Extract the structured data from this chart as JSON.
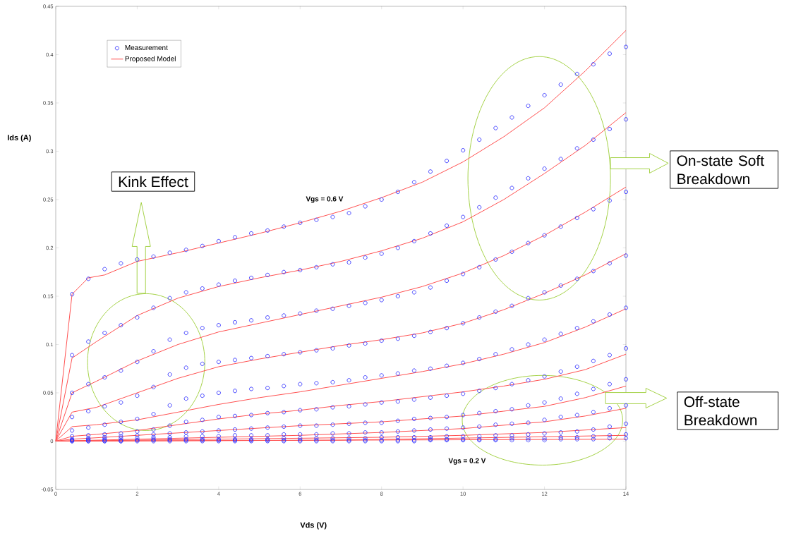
{
  "chart_data": {
    "type": "line",
    "xlabel": "Vds (V)",
    "ylabel": "Ids (A)",
    "xlim": [
      0,
      14
    ],
    "ylim": [
      -0.05,
      0.45
    ],
    "xticks": [
      0,
      2,
      4,
      6,
      8,
      10,
      12,
      14
    ],
    "yticks": [
      -0.05,
      0,
      0.05,
      0.1,
      0.15,
      0.2,
      0.25,
      0.3,
      0.35,
      0.4,
      0.45
    ],
    "legend": "top left",
    "marker": "none",
    "grid": false,
    "x": [
      0.4,
      0.8,
      1.2,
      1.6,
      2,
      2.4,
      2.8,
      3.2,
      3.6,
      4,
      4.4,
      4.8,
      5.2,
      5.6,
      6,
      6.4,
      6.8,
      7.2,
      7.6,
      8,
      8.4,
      8.8,
      9.2,
      9.6,
      10,
      10.4,
      10.8,
      11.2,
      11.6,
      12,
      12.4,
      12.8,
      13.2,
      13.6,
      14
    ],
    "series": [
      {
        "name": "Measurement",
        "type": "scatter",
        "marker": "circle",
        "color": "#3333ff",
        "values": [
          0.152,
          0.168,
          0.178,
          0.184,
          0.188,
          0.191,
          0.195,
          0.198,
          0.202,
          0.207,
          0.211,
          0.215,
          0.218,
          0.222,
          0.226,
          0.229,
          0.232,
          0.236,
          0.243,
          0.25,
          0.258,
          0.268,
          0.279,
          0.29,
          0.301,
          0.312,
          0.324,
          0.335,
          0.347,
          0.358,
          0.369,
          0.38,
          0.39,
          0.401,
          0.408
        ]
      },
      {
        "name": "Proposed Model",
        "color": "#ff5050",
        "x": [
          0,
          0.4,
          0.8,
          1.2,
          2,
          3,
          4,
          5,
          6,
          7,
          8,
          9,
          10,
          11,
          12,
          13,
          14
        ],
        "values": [
          0,
          0.152,
          0.169,
          0.172,
          0.186,
          0.195,
          0.205,
          0.215,
          0.226,
          0.238,
          0.252,
          0.268,
          0.289,
          0.315,
          0.345,
          0.383,
          0.425
        ]
      },
      {
        "color": "#ff5050",
        "x": [
          0,
          0.4,
          1,
          2,
          3,
          4,
          5,
          6,
          7,
          8,
          9,
          10,
          11,
          12,
          13,
          14
        ],
        "values": [
          0,
          0.086,
          0.103,
          0.13,
          0.148,
          0.16,
          0.169,
          0.177,
          0.186,
          0.197,
          0.21,
          0.227,
          0.25,
          0.277,
          0.306,
          0.34
        ]
      },
      {
        "color": "#ff5050",
        "x": [
          0,
          0.4,
          1,
          2,
          3,
          4,
          5,
          6,
          7,
          8,
          9,
          10,
          11,
          12,
          13,
          14
        ],
        "values": [
          0,
          0.05,
          0.062,
          0.083,
          0.1,
          0.113,
          0.122,
          0.131,
          0.14,
          0.149,
          0.16,
          0.174,
          0.192,
          0.213,
          0.237,
          0.263
        ]
      },
      {
        "color": "#ff5050",
        "x": [
          0,
          0.4,
          1,
          2,
          3,
          4,
          5,
          6,
          7,
          8,
          9,
          10,
          11,
          12,
          13,
          14
        ],
        "values": [
          0,
          0.03,
          0.035,
          0.05,
          0.065,
          0.077,
          0.085,
          0.092,
          0.099,
          0.105,
          0.112,
          0.122,
          0.136,
          0.153,
          0.172,
          0.194
        ]
      },
      {
        "color": "#ff5050",
        "x": [
          0,
          0.4,
          1,
          2,
          3,
          4,
          5,
          6,
          7,
          8,
          9,
          10,
          11,
          12,
          13,
          14
        ],
        "values": [
          0,
          0.015,
          0.017,
          0.022,
          0.03,
          0.038,
          0.045,
          0.051,
          0.058,
          0.065,
          0.072,
          0.08,
          0.09,
          0.102,
          0.118,
          0.137
        ]
      },
      {
        "color": "#ff5050",
        "x": [
          0,
          0.4,
          1,
          2,
          3,
          4,
          5,
          6,
          7,
          8,
          9,
          10,
          11,
          12,
          13,
          14
        ],
        "values": [
          0,
          0.005,
          0.007,
          0.011,
          0.017,
          0.023,
          0.028,
          0.032,
          0.037,
          0.041,
          0.046,
          0.051,
          0.057,
          0.064,
          0.074,
          0.09
        ]
      },
      {
        "color": "#ff5050",
        "x": [
          0,
          0.4,
          2,
          4,
          6,
          8,
          10,
          11,
          12,
          13,
          14
        ],
        "values": [
          0,
          0.002,
          0.006,
          0.011,
          0.016,
          0.02,
          0.026,
          0.031,
          0.036,
          0.045,
          0.057
        ]
      },
      {
        "color": "#ff5050",
        "x": [
          0,
          2,
          4,
          6,
          8,
          10,
          12,
          13,
          14
        ],
        "values": [
          0,
          0.002,
          0.004,
          0.006,
          0.009,
          0.013,
          0.02,
          0.026,
          0.034
        ]
      },
      {
        "color": "#ff5050",
        "x": [
          0,
          4,
          8,
          10,
          12,
          14
        ],
        "values": [
          0,
          0.002,
          0.004,
          0.006,
          0.009,
          0.014
        ]
      },
      {
        "color": "#ff5050",
        "x": [
          0,
          7,
          14
        ],
        "values": [
          0,
          0.001,
          0.006
        ]
      },
      {
        "color": "#ff5050",
        "x": [
          0,
          14
        ],
        "values": [
          0,
          0.002
        ]
      },
      {
        "type": "scatter",
        "marker": "circle",
        "color": "#3333ff",
        "values": [
          0.089,
          0.103,
          0.112,
          0.12,
          0.128,
          0.138,
          0.148,
          0.154,
          0.158,
          0.162,
          0.166,
          0.169,
          0.172,
          0.175,
          0.177,
          0.18,
          0.183,
          0.185,
          0.19,
          0.194,
          0.2,
          0.207,
          0.215,
          0.223,
          0.232,
          0.242,
          0.252,
          0.262,
          0.272,
          0.282,
          0.292,
          0.303,
          0.312,
          0.323,
          0.333
        ]
      },
      {
        "type": "scatter",
        "marker": "circle",
        "color": "#3333ff",
        "values": [
          0.05,
          0.059,
          0.066,
          0.073,
          0.082,
          0.093,
          0.105,
          0.112,
          0.117,
          0.12,
          0.123,
          0.125,
          0.128,
          0.13,
          0.132,
          0.135,
          0.137,
          0.14,
          0.143,
          0.146,
          0.15,
          0.154,
          0.159,
          0.166,
          0.173,
          0.18,
          0.188,
          0.196,
          0.205,
          0.213,
          0.222,
          0.231,
          0.24,
          0.249,
          0.258
        ]
      },
      {
        "type": "scatter",
        "marker": "circle",
        "color": "#3333ff",
        "values": [
          0.025,
          0.031,
          0.036,
          0.04,
          0.047,
          0.056,
          0.069,
          0.076,
          0.08,
          0.082,
          0.084,
          0.086,
          0.088,
          0.09,
          0.092,
          0.094,
          0.096,
          0.099,
          0.101,
          0.104,
          0.106,
          0.109,
          0.113,
          0.117,
          0.122,
          0.128,
          0.134,
          0.14,
          0.148,
          0.154,
          0.161,
          0.168,
          0.176,
          0.184,
          0.192
        ]
      },
      {
        "type": "scatter",
        "marker": "circle",
        "color": "#3333ff",
        "values": [
          0.011,
          0.014,
          0.017,
          0.02,
          0.023,
          0.028,
          0.037,
          0.044,
          0.047,
          0.05,
          0.052,
          0.054,
          0.055,
          0.057,
          0.059,
          0.06,
          0.061,
          0.063,
          0.066,
          0.068,
          0.07,
          0.073,
          0.075,
          0.078,
          0.081,
          0.085,
          0.09,
          0.095,
          0.1,
          0.105,
          0.111,
          0.117,
          0.124,
          0.131,
          0.138
        ]
      },
      {
        "type": "scatter",
        "marker": "circle",
        "color": "#3333ff",
        "values": [
          0.005,
          0.006,
          0.007,
          0.008,
          0.01,
          0.012,
          0.016,
          0.02,
          0.022,
          0.025,
          0.026,
          0.027,
          0.029,
          0.03,
          0.032,
          0.033,
          0.035,
          0.036,
          0.038,
          0.04,
          0.041,
          0.043,
          0.045,
          0.047,
          0.049,
          0.052,
          0.055,
          0.059,
          0.063,
          0.067,
          0.072,
          0.077,
          0.083,
          0.089,
          0.096
        ]
      },
      {
        "type": "scatter",
        "marker": "circle",
        "color": "#3333ff",
        "values": [
          0.002,
          0.003,
          0.004,
          0.005,
          0.006,
          0.007,
          0.008,
          0.009,
          0.01,
          0.011,
          0.012,
          0.013,
          0.014,
          0.015,
          0.016,
          0.016,
          0.017,
          0.018,
          0.019,
          0.019,
          0.021,
          0.023,
          0.024,
          0.025,
          0.027,
          0.029,
          0.031,
          0.033,
          0.037,
          0.04,
          0.044,
          0.049,
          0.054,
          0.059,
          0.064
        ]
      },
      {
        "type": "scatter",
        "marker": "circle",
        "color": "#3333ff",
        "values": [
          0.001,
          0.002,
          0.002,
          0.003,
          0.003,
          0.004,
          0.004,
          0.005,
          0.005,
          0.005,
          0.006,
          0.006,
          0.006,
          0.007,
          0.007,
          0.007,
          0.008,
          0.008,
          0.009,
          0.009,
          0.01,
          0.011,
          0.012,
          0.013,
          0.014,
          0.015,
          0.017,
          0.018,
          0.019,
          0.022,
          0.025,
          0.027,
          0.03,
          0.034,
          0.037
        ]
      },
      {
        "type": "scatter",
        "marker": "circle",
        "color": "#3333ff",
        "values": [
          0.001,
          0.001,
          0.001,
          0.001,
          0.001,
          0.002,
          0.002,
          0.002,
          0.002,
          0.002,
          0.002,
          0.002,
          0.002,
          0.003,
          0.003,
          0.003,
          0.003,
          0.003,
          0.003,
          0.004,
          0.004,
          0.004,
          0.004,
          0.005,
          0.005,
          0.005,
          0.006,
          0.006,
          0.007,
          0.008,
          0.009,
          0.01,
          0.012,
          0.015,
          0.018
        ]
      },
      {
        "type": "scatter",
        "marker": "circle",
        "color": "#3333ff",
        "values": [
          0,
          0,
          0,
          0,
          0.001,
          0.001,
          0.001,
          0.001,
          0.001,
          0.001,
          0.001,
          0.001,
          0.001,
          0.001,
          0.001,
          0.001,
          0.001,
          0.001,
          0.001,
          0.001,
          0.001,
          0.001,
          0.002,
          0.002,
          0.002,
          0.002,
          0.002,
          0.003,
          0.003,
          0.003,
          0.004,
          0.004,
          0.005,
          0.006,
          0.007
        ]
      },
      {
        "type": "scatter",
        "marker": "circle",
        "color": "#3333ff",
        "values": [
          0,
          0,
          0,
          0,
          0,
          0,
          0,
          0,
          0,
          0,
          0,
          0,
          0,
          0,
          0,
          0,
          0,
          0,
          0,
          0,
          0,
          0,
          0.001,
          0.001,
          0.001,
          0.001,
          0.001,
          0.001,
          0.001,
          0.001,
          0.002,
          0.002,
          0.002,
          0.003,
          0.003
        ]
      }
    ],
    "annotations": [
      "Vgs = 0.6 V",
      "Vgs = 0.2 V",
      "Kink Effect",
      "On-state Soft Breakdown",
      "Off-state Breakdown"
    ]
  }
}
